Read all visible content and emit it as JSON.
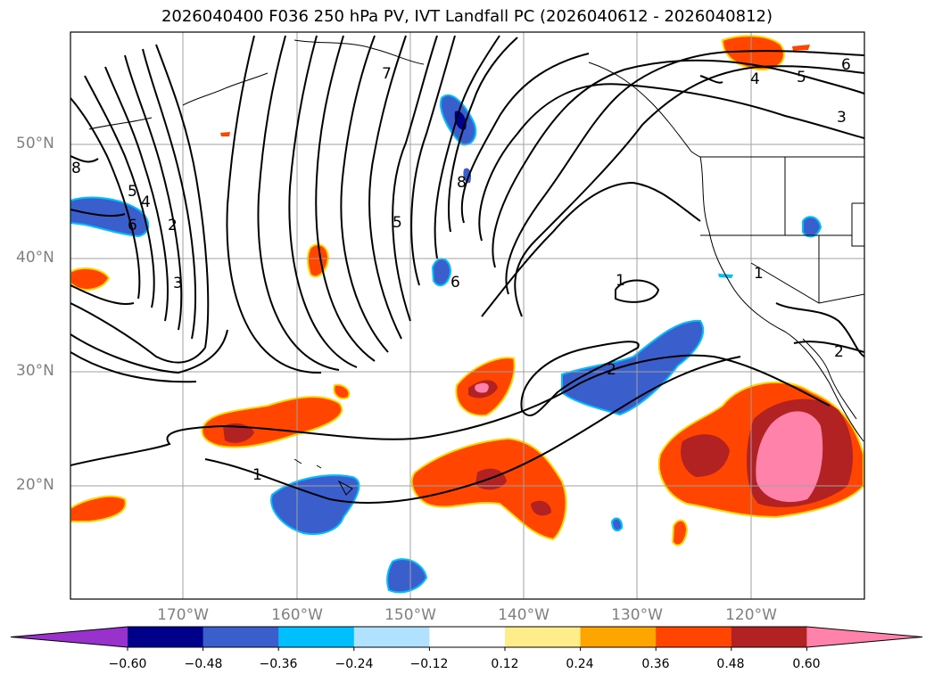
{
  "title": "2026040400 F036 250 hPa PV, IVT Landfall PC (2026040612 - 2026040812)",
  "lat_labels": [
    "50°N",
    "40°N",
    "30°N",
    "20°N"
  ],
  "lon_labels": [
    "170°W",
    "160°W",
    "150°W",
    "140°W",
    "130°W",
    "120°W"
  ],
  "contour_labels": [
    "1",
    "2",
    "3",
    "4",
    "5",
    "6",
    "7",
    "8"
  ],
  "colorbar": {
    "tick_labels": [
      "−0.60",
      "−0.48",
      "−0.36",
      "−0.24",
      "−0.12",
      "0.12",
      "0.24",
      "0.36",
      "0.48",
      "0.60"
    ],
    "levels": [
      -0.6,
      -0.48,
      -0.36,
      -0.24,
      -0.12,
      0.12,
      0.24,
      0.36,
      0.48,
      0.6
    ],
    "colors": [
      "#9932cc",
      "#00008b",
      "#3a5fcd",
      "#00bfff",
      "#b0e2ff",
      "#ffffff",
      "#ffec8b",
      "#ffa500",
      "#ff4500",
      "#b22222",
      "#ff82ab"
    ]
  }
}
